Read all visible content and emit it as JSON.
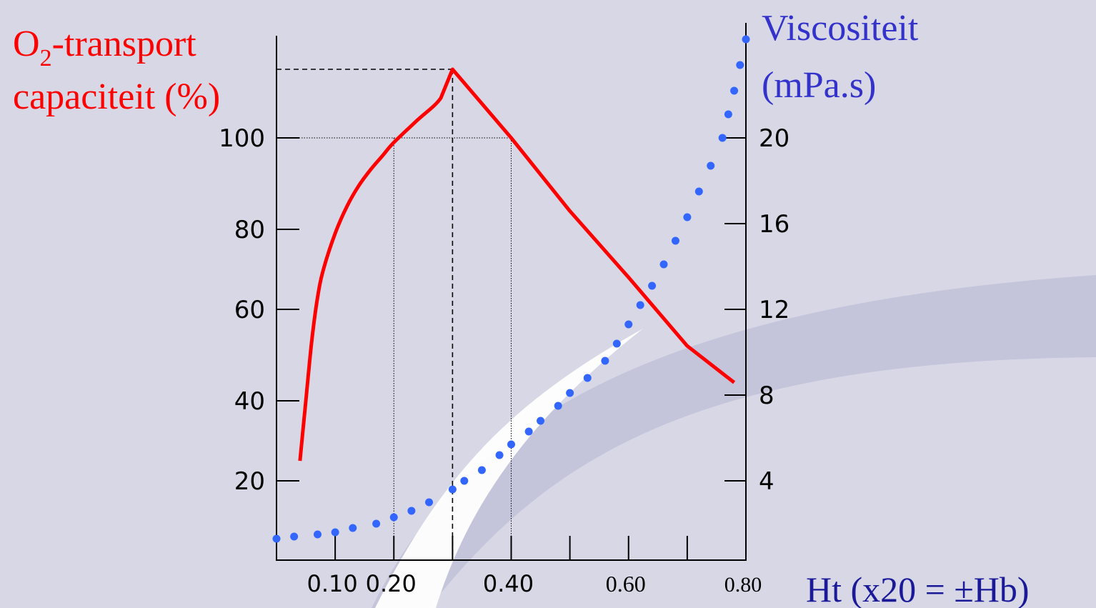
{
  "chart_data": {
    "type": "line",
    "left_axis": {
      "title_line1_prefix": "O",
      "title_line1_subscript": "2",
      "title_line1_suffix": "-transport",
      "title_line2": "capaciteit (%)",
      "ticks": [
        "20",
        "40",
        "60",
        "80",
        "100"
      ],
      "tick_values": [
        20,
        40,
        60,
        80,
        100
      ],
      "color": "#ff0000"
    },
    "right_axis": {
      "title_line1": "Viscositeit",
      "title_line2": "(mPa.s)",
      "ticks": [
        "4",
        "8",
        "12",
        "16",
        "20"
      ],
      "tick_values": [
        4,
        8,
        12,
        16,
        20
      ],
      "color": "#3333cc"
    },
    "x_axis": {
      "label": "Ht (x20 = ±Hb)",
      "ticks": [
        "0.10",
        "0.20",
        "0.40",
        "0.60",
        "0.80"
      ],
      "tick_values": [
        0.1,
        0.2,
        0.4,
        0.6,
        0.8
      ],
      "label_color": "#1a1a99"
    },
    "series": [
      {
        "axis": "left",
        "style": "solid",
        "color": "#ff0000",
        "x": [
          0.04,
          0.05,
          0.06,
          0.07,
          0.08,
          0.1,
          0.12,
          0.14,
          0.16,
          0.18,
          0.2,
          0.24,
          0.28,
          0.3,
          0.4,
          0.5,
          0.6,
          0.7,
          0.78
        ],
        "y": [
          25,
          40,
          53,
          63,
          70,
          79,
          85,
          89.5,
          93,
          96,
          99,
          104,
          109,
          115.5,
          100,
          84,
          68,
          52,
          44
        ]
      },
      {
        "axis": "right",
        "style": "dotted",
        "color": "#3366ff",
        "x": [
          0.0,
          0.03,
          0.07,
          0.1,
          0.13,
          0.17,
          0.2,
          0.23,
          0.26,
          0.3,
          0.32,
          0.35,
          0.38,
          0.4,
          0.43,
          0.45,
          0.48,
          0.5,
          0.53,
          0.56,
          0.58,
          0.6,
          0.62,
          0.64,
          0.66,
          0.68,
          0.7,
          0.72,
          0.74,
          0.76,
          0.77,
          0.78,
          0.79,
          0.8
        ],
        "y": [
          1.3,
          1.4,
          1.5,
          1.6,
          1.8,
          2.0,
          2.3,
          2.6,
          3.0,
          3.6,
          4.0,
          4.5,
          5.2,
          5.7,
          6.3,
          6.8,
          7.5,
          8.1,
          8.8,
          9.6,
          10.4,
          11.3,
          12.2,
          13.1,
          14.1,
          15.2,
          16.3,
          17.5,
          18.7,
          20.0,
          21.1,
          22.2,
          23.4,
          24.6
        ]
      }
    ],
    "reference_lines": [
      {
        "style": "dashed",
        "x": 0.3,
        "y": 115.5
      },
      {
        "style": "dotted",
        "x": [
          0.2,
          0.4
        ],
        "y": 100
      }
    ],
    "xlim": [
      0,
      0.8
    ],
    "ylim_left": [
      6,
      125
    ],
    "ylim_right": [
      0.97,
      24.97
    ],
    "grid": false
  }
}
